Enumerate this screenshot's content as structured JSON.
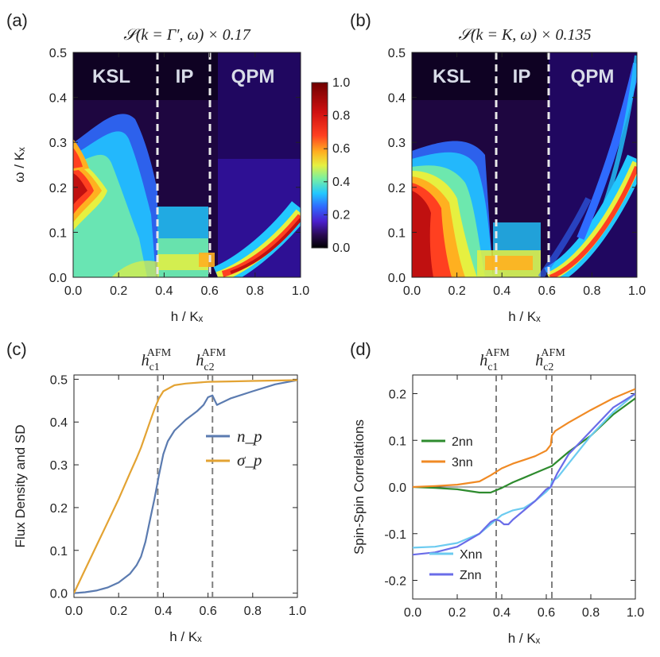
{
  "panels": [
    {
      "label": "(a)",
      "title": "𝒮(k = Γ′, ω) × 0.17"
    },
    {
      "label": "(b)",
      "title": "𝒮(k = K, ω) × 0.135"
    },
    {
      "label": "(c)"
    },
    {
      "label": "(d)"
    }
  ],
  "colorbar": {
    "ticks": [
      "1.0",
      "0.8",
      "0.6",
      "0.4",
      "0.2",
      "0.0"
    ]
  },
  "regions": [
    "KSL",
    "IP",
    "QPM"
  ],
  "chart_data": [
    {
      "type": "heatmap",
      "panel": "a",
      "title": "S(k=Γ',ω) × 0.17",
      "xlabel": "h / Kₓ",
      "ylabel": "ω / Kₓ",
      "xlim": [
        0,
        1
      ],
      "ylim": [
        0,
        0.5
      ],
      "xticks": [
        "0.0",
        "0.2",
        "0.4",
        "0.6",
        "0.8",
        "1.0"
      ],
      "yticks": [
        "0.0",
        "0.1",
        "0.2",
        "0.3",
        "0.4",
        "0.5"
      ],
      "vlines": [
        0.375,
        0.62
      ],
      "regions": [
        "KSL",
        "IP",
        "QPM"
      ],
      "zlim": [
        0,
        1
      ]
    },
    {
      "type": "heatmap",
      "panel": "b",
      "title": "S(k=K,ω) × 0.135",
      "xlabel": "h / Kₓ",
      "ylabel": "",
      "xlim": [
        0,
        1
      ],
      "ylim": [
        0,
        0.5
      ],
      "xticks": [
        "0.0",
        "0.2",
        "0.4",
        "0.6",
        "0.8",
        "1.0"
      ],
      "yticks": [
        "0.0",
        "0.1",
        "0.2",
        "0.3",
        "0.4",
        "0.5"
      ],
      "vlines": [
        0.375,
        0.62
      ],
      "regions": [
        "KSL",
        "IP",
        "QPM"
      ],
      "zlim": [
        0,
        1
      ]
    },
    {
      "type": "line",
      "panel": "c",
      "xlabel": "h / Kₓ",
      "ylabel": "Flux Density and SD",
      "xlim": [
        0,
        1
      ],
      "ylim": [
        -0.01,
        0.51
      ],
      "xticks": [
        "0.0",
        "0.2",
        "0.4",
        "0.6",
        "0.8",
        "1.0"
      ],
      "yticks": [
        "0.0",
        "0.1",
        "0.2",
        "0.3",
        "0.4",
        "0.5"
      ],
      "vlines": [
        {
          "x": 0.375,
          "label": "h_c1^AFM"
        },
        {
          "x": 0.62,
          "label": "h_c2^AFM"
        }
      ],
      "series": [
        {
          "name": "n_p",
          "color": "#5b7bb0",
          "x": [
            0,
            0.05,
            0.1,
            0.15,
            0.2,
            0.25,
            0.28,
            0.3,
            0.32,
            0.34,
            0.36,
            0.38,
            0.4,
            0.42,
            0.45,
            0.5,
            0.55,
            0.58,
            0.6,
            0.62,
            0.64,
            0.7,
            0.8,
            0.9,
            1.0
          ],
          "y": [
            0.0,
            0.002,
            0.006,
            0.013,
            0.025,
            0.045,
            0.065,
            0.085,
            0.12,
            0.17,
            0.22,
            0.275,
            0.325,
            0.355,
            0.38,
            0.405,
            0.425,
            0.44,
            0.458,
            0.462,
            0.44,
            0.455,
            0.472,
            0.488,
            0.498
          ]
        },
        {
          "name": "σ_p",
          "color": "#e3a333",
          "x": [
            0,
            0.05,
            0.1,
            0.15,
            0.2,
            0.25,
            0.28,
            0.3,
            0.32,
            0.34,
            0.36,
            0.38,
            0.4,
            0.45,
            0.5,
            0.6,
            0.7,
            0.8,
            1.0
          ],
          "y": [
            0.0,
            0.055,
            0.11,
            0.165,
            0.22,
            0.28,
            0.315,
            0.34,
            0.37,
            0.4,
            0.43,
            0.455,
            0.472,
            0.486,
            0.49,
            0.494,
            0.495,
            0.496,
            0.498
          ]
        }
      ]
    },
    {
      "type": "line",
      "panel": "d",
      "xlabel": "h / Kₓ",
      "ylabel": "Spin-Spin Correlations",
      "xlim": [
        0,
        1
      ],
      "ylim": [
        -0.24,
        0.24
      ],
      "xticks": [
        "0.0",
        "0.2",
        "0.4",
        "0.6",
        "0.8",
        "1.0"
      ],
      "yticks": [
        "-0.2",
        "-0.1",
        "0.0",
        "0.1",
        "0.2"
      ],
      "vlines": [
        {
          "x": 0.375,
          "label": "h_c1^AFM"
        },
        {
          "x": 0.625,
          "label": "h_c2^AFM"
        }
      ],
      "series": [
        {
          "name": "2nn",
          "color": "#2e8b2e",
          "x": [
            0,
            0.1,
            0.2,
            0.3,
            0.35,
            0.4,
            0.45,
            0.5,
            0.55,
            0.6,
            0.625,
            0.7,
            0.8,
            0.9,
            1.0
          ],
          "y": [
            0,
            -0.002,
            -0.005,
            -0.012,
            -0.012,
            -0.002,
            0.01,
            0.02,
            0.03,
            0.04,
            0.045,
            0.075,
            0.11,
            0.155,
            0.19
          ]
        },
        {
          "name": "3nn",
          "color": "#f08a24",
          "x": [
            0,
            0.1,
            0.2,
            0.3,
            0.35,
            0.4,
            0.45,
            0.5,
            0.55,
            0.6,
            0.62,
            0.625,
            0.64,
            0.7,
            0.8,
            0.9,
            1.0
          ],
          "y": [
            0,
            0.002,
            0.005,
            0.012,
            0.025,
            0.04,
            0.05,
            0.058,
            0.066,
            0.078,
            0.09,
            0.11,
            0.12,
            0.138,
            0.165,
            0.19,
            0.21
          ]
        },
        {
          "name": "Xnn",
          "color": "#6ccbf0",
          "x": [
            0,
            0.1,
            0.2,
            0.3,
            0.35,
            0.4,
            0.45,
            0.5,
            0.55,
            0.6,
            0.62,
            0.625,
            0.65,
            0.7,
            0.8,
            0.9,
            1.0
          ],
          "y": [
            -0.13,
            -0.128,
            -0.12,
            -0.1,
            -0.08,
            -0.06,
            -0.05,
            -0.045,
            -0.03,
            -0.01,
            0.0,
            0.012,
            0.02,
            0.05,
            0.11,
            0.16,
            0.2
          ]
        },
        {
          "name": "Znn",
          "color": "#6a6ce8",
          "x": [
            0,
            0.1,
            0.2,
            0.3,
            0.35,
            0.37,
            0.39,
            0.41,
            0.43,
            0.45,
            0.5,
            0.55,
            0.6,
            0.62,
            0.625,
            0.65,
            0.7,
            0.8,
            0.9,
            1.0
          ],
          "y": [
            -0.145,
            -0.14,
            -0.128,
            -0.1,
            -0.075,
            -0.07,
            -0.072,
            -0.08,
            -0.08,
            -0.07,
            -0.05,
            -0.03,
            -0.005,
            0.0,
            0.005,
            0.03,
            0.07,
            0.12,
            0.17,
            0.2
          ]
        }
      ]
    }
  ]
}
